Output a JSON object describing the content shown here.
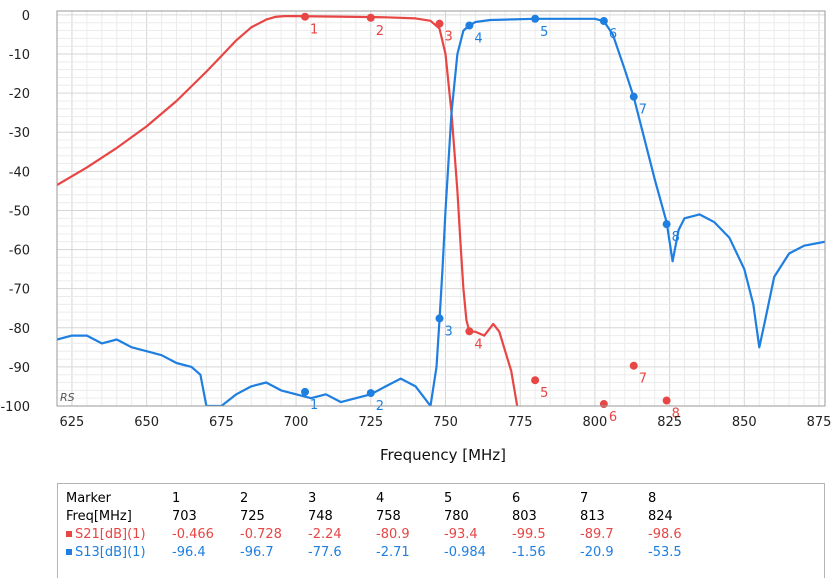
{
  "chart_data": {
    "type": "line",
    "xlabel": "Frequency [MHz]",
    "ylabel": "",
    "xlim": [
      620,
      877
    ],
    "ylim": [
      -100,
      1
    ],
    "x_ticks": [
      625,
      650,
      675,
      700,
      725,
      750,
      775,
      800,
      825,
      850,
      875
    ],
    "y_ticks": [
      0,
      -10,
      -20,
      -30,
      -40,
      -50,
      -60,
      -70,
      -80,
      -90,
      -100
    ],
    "grid": true,
    "watermark": "RS",
    "series": [
      {
        "name": "S21[dB](1)",
        "color": "#e84545",
        "x": [
          620,
          630,
          640,
          650,
          660,
          670,
          675,
          680,
          685,
          690,
          693,
          696,
          700,
          710,
          720,
          730,
          740,
          745,
          748,
          750,
          752,
          754,
          755,
          756,
          757,
          758,
          760,
          763,
          766,
          768,
          770,
          772,
          774
        ],
        "y": [
          -43.5,
          -39,
          -34,
          -28.5,
          -22,
          -14.5,
          -10.5,
          -6.5,
          -3.2,
          -1.2,
          -0.5,
          -0.3,
          -0.3,
          -0.4,
          -0.5,
          -0.6,
          -0.9,
          -1.5,
          -3.5,
          -10,
          -25,
          -45,
          -58,
          -70,
          -78,
          -81,
          -81,
          -82,
          -79,
          -81,
          -86,
          -91,
          -100
        ]
      },
      {
        "name": "S13[dB](1)",
        "color": "#1f7fe0",
        "x": [
          620,
          625,
          630,
          635,
          640,
          645,
          650,
          655,
          660,
          665,
          668,
          670,
          672,
          675,
          680,
          685,
          690,
          695,
          700,
          705,
          710,
          715,
          720,
          725,
          730,
          735,
          740,
          743,
          745,
          747,
          748,
          749,
          750,
          752,
          754,
          756,
          758,
          760,
          765,
          770,
          780,
          790,
          800,
          803,
          806,
          810,
          813,
          816,
          820,
          824,
          825,
          826,
          828,
          830,
          835,
          840,
          845,
          850,
          853,
          855,
          857,
          860,
          865,
          870,
          877
        ],
        "y": [
          -83,
          -82,
          -82,
          -84,
          -83,
          -85,
          -86,
          -87,
          -89,
          -90,
          -92,
          -100,
          -100,
          -100,
          -97,
          -95,
          -94,
          -96,
          -97,
          -98,
          -97,
          -99,
          -98,
          -97,
          -95,
          -93,
          -95,
          -98,
          -100,
          -90,
          -78,
          -65,
          -50,
          -25,
          -10,
          -4,
          -2.7,
          -1.8,
          -1.3,
          -1.2,
          -1,
          -1,
          -1,
          -1.6,
          -5,
          -14,
          -21,
          -30,
          -42,
          -53,
          -58,
          -63,
          -55,
          -52,
          -51,
          -53,
          -57,
          -65,
          -74,
          -85,
          -78,
          -67,
          -61,
          -59,
          -58
        ]
      }
    ],
    "markers": [
      {
        "id": "1",
        "freq": 703,
        "s21": -0.466,
        "s13": -96.4
      },
      {
        "id": "2",
        "freq": 725,
        "s21": -0.728,
        "s13": -96.7
      },
      {
        "id": "3",
        "freq": 748,
        "s21": -2.24,
        "s13": -77.6
      },
      {
        "id": "4",
        "freq": 758,
        "s21": -80.9,
        "s13": -2.71
      },
      {
        "id": "5",
        "freq": 780,
        "s21": -93.4,
        "s13": -0.984
      },
      {
        "id": "6",
        "freq": 803,
        "s21": -99.5,
        "s13": -1.56
      },
      {
        "id": "7",
        "freq": 813,
        "s21": -89.7,
        "s13": -20.9
      },
      {
        "id": "8",
        "freq": 824,
        "s21": -98.6,
        "s13": -53.5
      }
    ]
  },
  "marker_table": {
    "header_label": "Marker",
    "freq_label": "Freq[MHz]",
    "s21_label": "S21[dB](1)",
    "s13_label": "S13[dB](1)",
    "ids": [
      "1",
      "2",
      "3",
      "4",
      "5",
      "6",
      "7",
      "8"
    ],
    "freqs": [
      "703",
      "725",
      "748",
      "758",
      "780",
      "803",
      "813",
      "824"
    ],
    "s21": [
      "-0.466",
      "-0.728",
      "-2.24",
      "-80.9",
      "-93.4",
      "-99.5",
      "-89.7",
      "-98.6"
    ],
    "s13": [
      "-96.4",
      "-96.7",
      "-77.6",
      "-2.71",
      "-0.984",
      "-1.56",
      "-20.9",
      "-53.5"
    ],
    "s21_color": "#e84545",
    "s13_color": "#1f7fe0"
  }
}
